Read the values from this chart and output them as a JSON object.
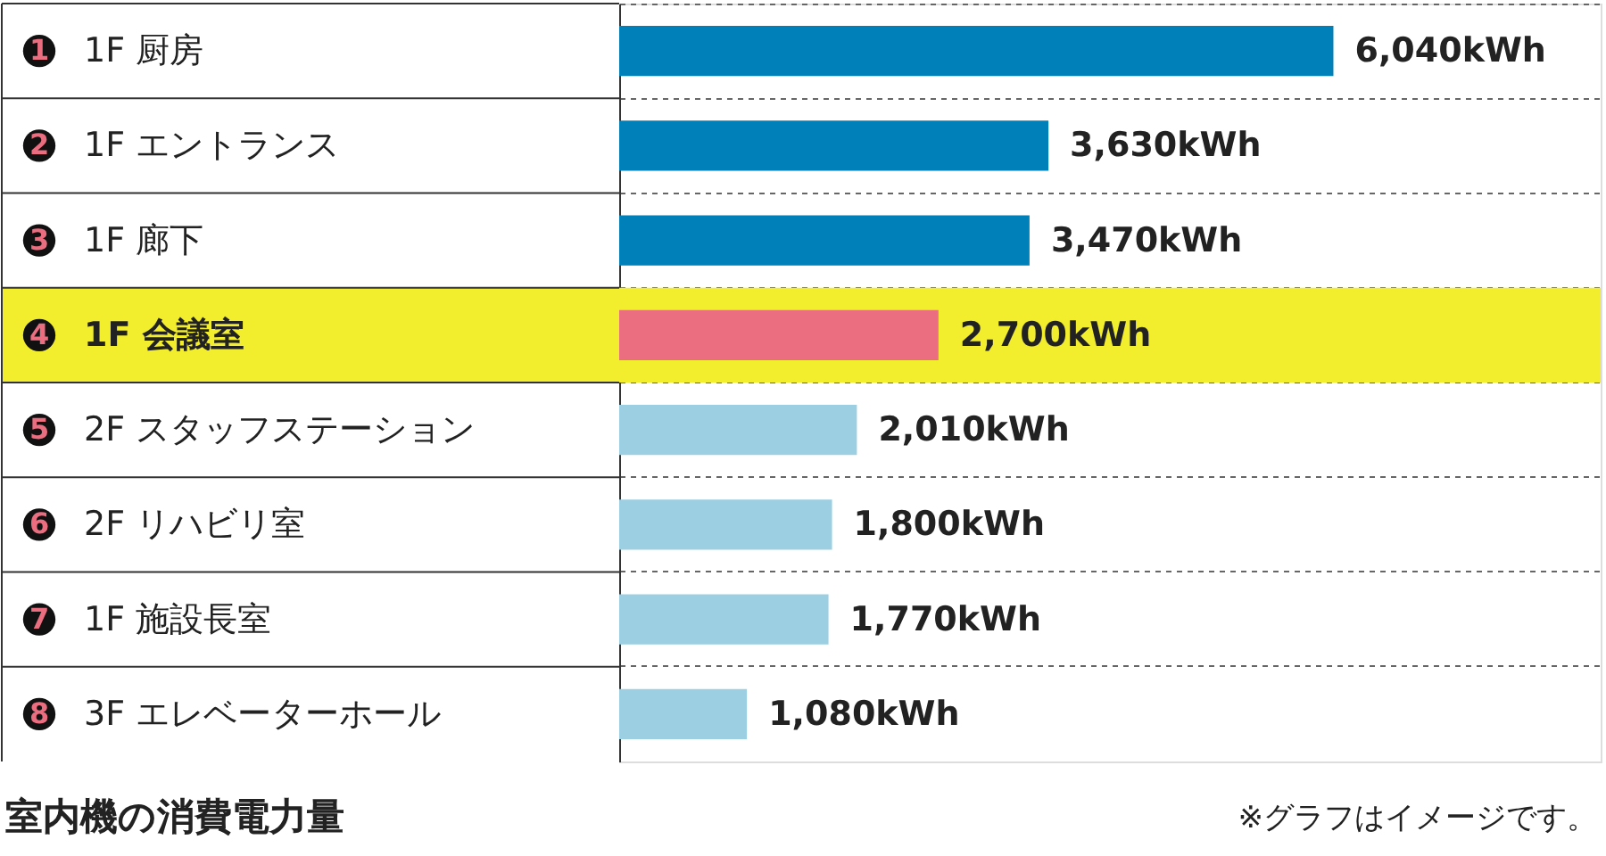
{
  "chart_data": {
    "type": "bar",
    "orientation": "horizontal",
    "title": "室内機の消費電力量",
    "categories": [
      "1F 厨房",
      "1F エントランス",
      "1F 廊下",
      "1F 会議室",
      "2F スタッフステーション",
      "2F リハビリ室",
      "1F 施設長室",
      "3F エレベーターホール"
    ],
    "values": [
      6040,
      3630,
      3470,
      2700,
      2010,
      1800,
      1770,
      1080
    ],
    "colors": [
      "#0080b8",
      "#0080b8",
      "#0080b8",
      "#eb6e80",
      "#9dcfe3",
      "#9dcfe3",
      "#9dcfe3",
      "#9dcfe3"
    ],
    "value_labels": [
      "6,040kWh",
      "3,630kWh",
      "3,470kWh",
      "2,700kWh",
      "2,010kWh",
      "1,800kWh",
      "1,770kWh",
      "1,080kWh"
    ],
    "xlim": [
      0,
      8300
    ],
    "bands": [
      {
        "axis": "y",
        "from": "1F 会議室",
        "to": "1F 会議室",
        "color": "#f2ee2e"
      }
    ],
    "annotations": [
      "1",
      "2",
      "3",
      "4",
      "5",
      "6",
      "7",
      "8",
      "※グラフはイメージです。"
    ],
    "grid": "y",
    "tick_labels": "y"
  }
}
